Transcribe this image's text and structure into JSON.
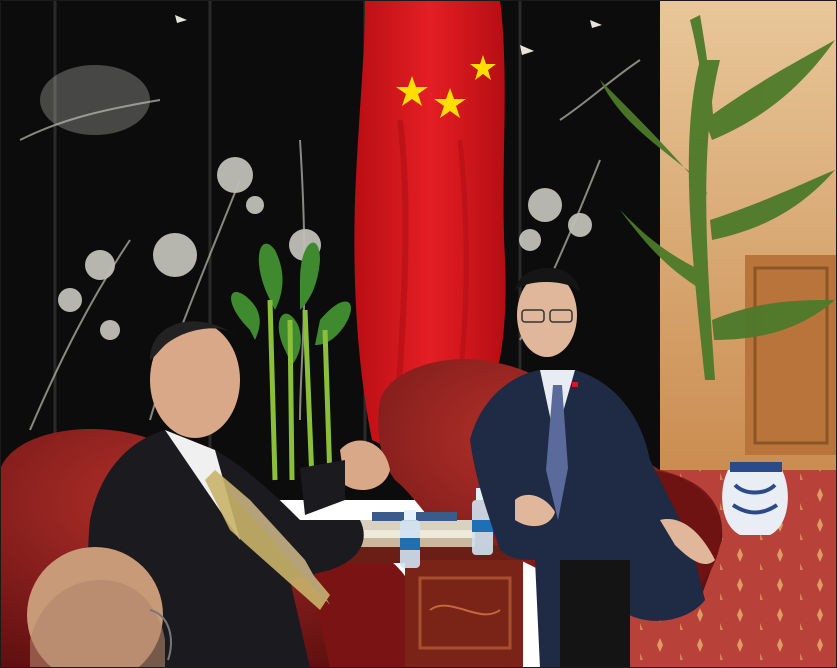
{
  "image": {
    "subject": "photo-meeting-room",
    "colors": {
      "screen": "#0d0d0d",
      "flag": "#d8161b",
      "star": "#ffde00",
      "leather": "#8e1c1c",
      "wall": "#c98a4e",
      "carpet": "#b83a35",
      "suit_dark": "#1b1b1f",
      "suit_navy": "#1f2a44"
    }
  }
}
